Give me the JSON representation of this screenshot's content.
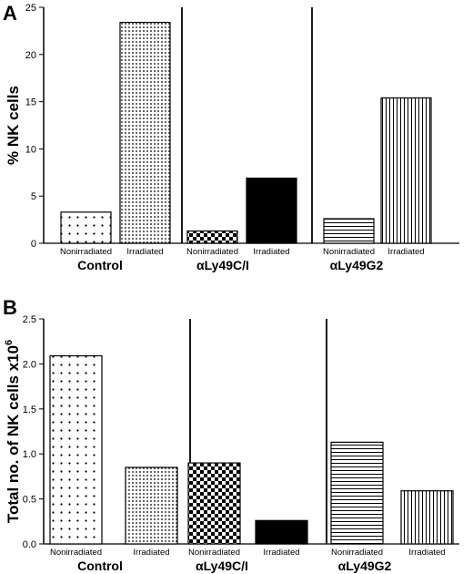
{
  "chart_data": [
    {
      "type": "bar",
      "panel": "A",
      "ylabel": "% NK cells",
      "ylim": [
        0,
        25
      ],
      "yticks": [
        "0",
        "5",
        "10",
        "15",
        "20",
        "25"
      ],
      "groups": [
        {
          "name": "Control",
          "bars": [
            {
              "label": "Nonirradiated",
              "value": 3.3,
              "pattern": "sparse-dots"
            },
            {
              "label": "Irradiated",
              "value": 23.4,
              "pattern": "dense-dots"
            }
          ]
        },
        {
          "name": "αLy49C/I",
          "bars": [
            {
              "label": "Nonirradiated",
              "value": 1.3,
              "pattern": "checker"
            },
            {
              "label": "Irradiated",
              "value": 6.9,
              "pattern": "solid"
            }
          ]
        },
        {
          "name": "αLy49G2",
          "bars": [
            {
              "label": "Nonirradiated",
              "value": 2.6,
              "pattern": "horizontal"
            },
            {
              "label": "Irradiated",
              "value": 15.4,
              "pattern": "vertical"
            }
          ]
        }
      ]
    },
    {
      "type": "bar",
      "panel": "B",
      "ylabel": "Total no. of NK cells x10",
      "ylabel_sup": "6",
      "ylim": [
        0,
        2.5
      ],
      "yticks": [
        "0.0",
        "0.5",
        "1.0",
        "1.5",
        "2.0",
        "2.5"
      ],
      "groups": [
        {
          "name": "Control",
          "bars": [
            {
              "label": "Nonirradiated",
              "value": 2.09,
              "pattern": "sparse-dots"
            },
            {
              "label": "Irradiated",
              "value": 0.85,
              "pattern": "dense-dots"
            }
          ]
        },
        {
          "name": "αLy49C/I",
          "bars": [
            {
              "label": "Nonirradiated",
              "value": 0.9,
              "pattern": "checker"
            },
            {
              "label": "Irradiated",
              "value": 0.26,
              "pattern": "solid"
            }
          ]
        },
        {
          "name": "αLy49G2",
          "bars": [
            {
              "label": "Nonirradiated",
              "value": 1.13,
              "pattern": "horizontal"
            },
            {
              "label": "Irradiated",
              "value": 0.59,
              "pattern": "vertical"
            }
          ]
        }
      ]
    }
  ]
}
